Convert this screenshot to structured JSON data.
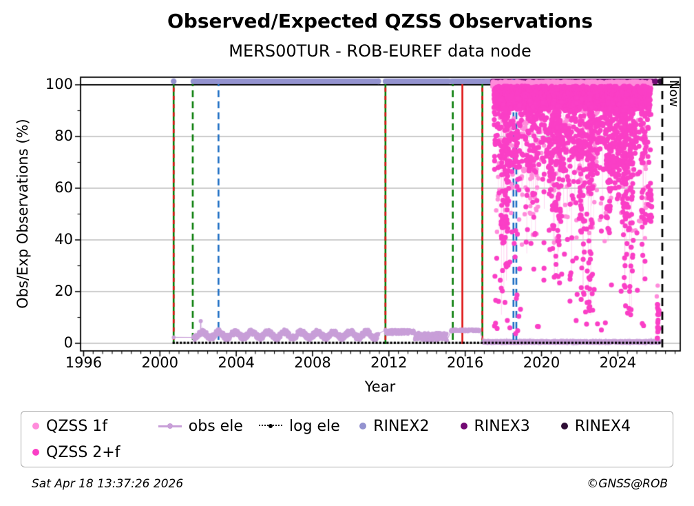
{
  "title": "Observed/Expected QZSS Observations",
  "subtitle": "MERS00TUR - ROB-EUREF data node",
  "footer": {
    "timestamp": "Sat Apr 18 13:37:26 2026",
    "credit": "©GNSS@ROB"
  },
  "legend": {
    "items": [
      {
        "label": "QZSS 1f",
        "marker": "dot",
        "color": "#FF8CDB",
        "row": 1
      },
      {
        "label": "obs ele",
        "marker": "line-dot",
        "color": "#C89FD8",
        "row": 1
      },
      {
        "label": "log ele",
        "marker": "dotted-line-dot",
        "color": "#000000",
        "row": 1
      },
      {
        "label": "RINEX2",
        "marker": "dot",
        "color": "#9392CF",
        "row": 1
      },
      {
        "label": "RINEX3",
        "marker": "dot",
        "color": "#720973",
        "row": 1
      },
      {
        "label": "RINEX4",
        "marker": "dot",
        "color": "#2E0E35",
        "row": 1
      },
      {
        "label": "QZSS 2+f",
        "marker": "dot",
        "color": "#FA3FC6",
        "row": 2
      }
    ]
  },
  "chart_data": {
    "type": "scatter",
    "title": "Observed/Expected QZSS Observations",
    "subtitle": "MERS00TUR - ROB-EUREF data node",
    "xlabel": "Year",
    "ylabel": "Obs/Exp Observations (%)",
    "xlim": [
      1995.84,
      2027.27
    ],
    "ylim": [
      -2.93,
      102.93
    ],
    "x_major_ticks": [
      1996,
      2000,
      2004,
      2008,
      2012,
      2016,
      2020,
      2024
    ],
    "x_minor_step": 0.5,
    "y_major_ticks": [
      0,
      20,
      40,
      60,
      80,
      100
    ],
    "y_minor_ticks": [
      10,
      30,
      50,
      70,
      90
    ],
    "gridlines": {
      "y_gray": [
        0,
        20,
        40,
        60,
        80
      ],
      "y_black": [
        100
      ]
    },
    "now_label": "Now",
    "colors": {
      "event_green": "#067B06",
      "event_red": "#DE1212",
      "event_blue": "#1E6FC4",
      "now_line": "#000000",
      "grid": "#BBBBBB",
      "axis": "#000000"
    },
    "event_lines": [
      {
        "x": 2000.72,
        "style": "green-red",
        "layer": "back"
      },
      {
        "x": 2001.72,
        "style": "green-dashed",
        "layer": "back"
      },
      {
        "x": 2003.07,
        "style": "blue-dashed",
        "layer": "back"
      },
      {
        "x": 2011.82,
        "style": "green-red",
        "layer": "back"
      },
      {
        "x": 2015.35,
        "style": "green-dashed",
        "layer": "back"
      },
      {
        "x": 2015.85,
        "style": "red-solid",
        "layer": "back"
      },
      {
        "x": 2016.9,
        "style": "green-red",
        "layer": "back"
      },
      {
        "x": 2018.53,
        "style": "blue-dashed",
        "layer": "mid"
      },
      {
        "x": 2018.68,
        "style": "blue-dashed",
        "layer": "mid"
      },
      {
        "x": 2026.33,
        "style": "now-dashed",
        "layer": "front"
      }
    ],
    "series": [
      {
        "name": "RINEX2",
        "type": "band",
        "layer": 1,
        "color": "#9392CF",
        "y": 101.35,
        "bands": [
          [
            2001.75,
            2011.35
          ],
          [
            2011.82,
            2015.12
          ],
          [
            2015.3,
            2016.78
          ],
          [
            2016.9,
            2017.42
          ]
        ],
        "dots": [
          2000.72,
          2011.45
        ]
      },
      {
        "name": "RINEX3",
        "type": "band",
        "layer": 1,
        "color": "#720973",
        "y": 101.35,
        "bands": [
          [
            2017.45,
            2025.82
          ]
        ],
        "dots": [
          2025.98
        ]
      },
      {
        "name": "RINEX4",
        "type": "band",
        "layer": 1,
        "color": "#2E0E35",
        "y": 101.35,
        "bands": [],
        "dots": [
          2026.22
        ]
      },
      {
        "name": "obs ele",
        "type": "line-scatter",
        "layer": 1,
        "color": "#C89FD8",
        "r": 2.8,
        "seed": 11,
        "segments": [
          {
            "x0": 2000.72,
            "x1": 2000.72,
            "base": 2.3,
            "amp": 0,
            "step": 0.01
          },
          {
            "x0": 2001.75,
            "x1": 2011.45,
            "base": 3.3,
            "amp": 2.2,
            "wave": 1.1,
            "step": 0.012,
            "spike_x": 2002.14,
            "spike_y": 8.6
          },
          {
            "x0": 2011.82,
            "x1": 2013.35,
            "base": 4.4,
            "amp": 1.6,
            "step": 0.012
          },
          {
            "x0": 2013.35,
            "x1": 2015.05,
            "base": 2.6,
            "amp": 3.0,
            "step": 0.012
          },
          {
            "x0": 2015.25,
            "x1": 2016.75,
            "base": 5.0,
            "amp": 0.7,
            "step": 0.012
          },
          {
            "x0": 2016.95,
            "x1": 2026.2,
            "base": 0.55,
            "amp": 0.9,
            "step": 0.01
          }
        ]
      },
      {
        "name": "log ele",
        "type": "dotted-zero-line",
        "layer": 1,
        "color": "#000000",
        "x0": 2000.72,
        "x1": 2026.33,
        "y": 0.2,
        "dot_step": 0.19,
        "dot_size": 3.2
      },
      {
        "name": "QZSS 1f",
        "type": "scatter-cloud",
        "layer": 2,
        "color": "#FF8CDB",
        "line_color": "rgba(255,190,232,0.45)",
        "r": 3.2,
        "seed": 21,
        "x0": 2017.45,
        "x1": 2025.7,
        "top": 101.3,
        "dense": {
          "step": 0.0042,
          "depth": 3.5,
          "dip_p": 0.18,
          "dip_depth": 6
        },
        "columns": {
          "n": 38,
          "low_min": 40,
          "low_max": 88,
          "pts_min": 4,
          "pts_max": 12,
          "line": true
        },
        "sparse": {
          "n": 110,
          "y_min": 38,
          "y_max": 95
        },
        "clusters": [
          {
            "x0": 2026.03,
            "x1": 2026.2,
            "y0": 2,
            "y1": 23,
            "n": 9
          }
        ]
      },
      {
        "name": "QZSS 2+f",
        "type": "scatter-cloud",
        "layer": 2,
        "color": "#FA3FC6",
        "line_color": "rgba(255,150,220,0.40)",
        "r": 3.6,
        "seed": 33,
        "x0": 2017.5,
        "x1": 2025.7,
        "top": 99.5,
        "dense": {
          "step": 0.0042,
          "depth": 9,
          "dip_p": 0.3,
          "dip_depth": 26
        },
        "columns": {
          "n": 55,
          "low_min": 10,
          "low_max": 62,
          "pts_min": 8,
          "pts_max": 22,
          "line": true
        },
        "sparse": {
          "n": 55,
          "y_min": 4,
          "y_max": 45
        },
        "clusters": [
          {
            "x0": 2025.55,
            "x1": 2025.78,
            "y0": 47,
            "y1": 62,
            "n": 22
          },
          {
            "x0": 2026.07,
            "x1": 2026.17,
            "y0": 1.5,
            "y1": 17,
            "n": 16
          },
          {
            "x0": 2017.5,
            "x1": 2018.8,
            "y0": 3,
            "y1": 20,
            "n": 8
          }
        ]
      }
    ]
  }
}
